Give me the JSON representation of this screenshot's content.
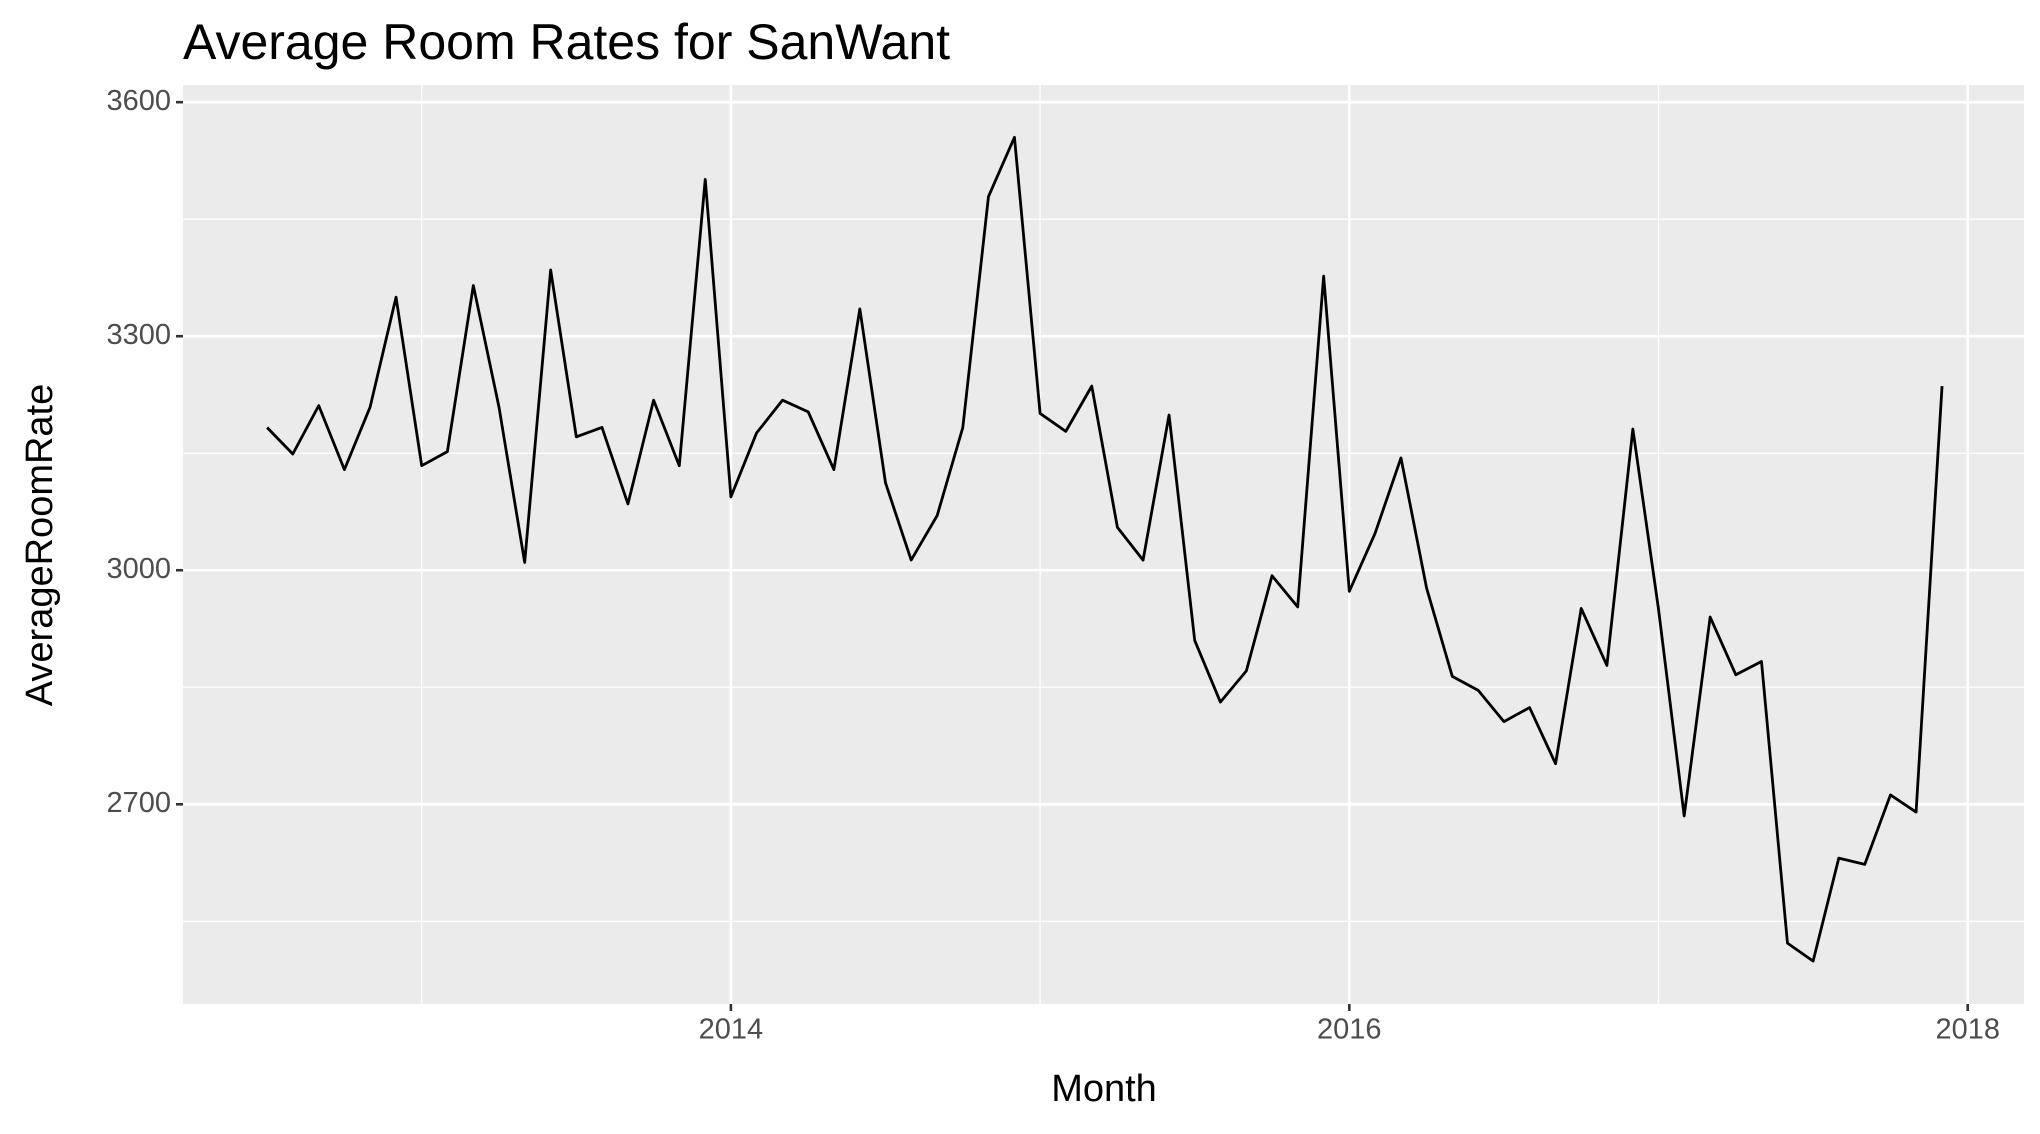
{
  "chart_data": {
    "type": "line",
    "title": "Average Room Rates for SanWant",
    "x_label": "Month",
    "y_label": "AverageRoomRate",
    "x": [
      2012.5,
      2012.583,
      2012.667,
      2012.75,
      2012.833,
      2012.917,
      2013.0,
      2013.083,
      2013.167,
      2013.25,
      2013.333,
      2013.417,
      2013.5,
      2013.583,
      2013.667,
      2013.75,
      2013.833,
      2013.917,
      2014.0,
      2014.083,
      2014.167,
      2014.25,
      2014.333,
      2014.417,
      2014.5,
      2014.583,
      2014.667,
      2014.75,
      2014.833,
      2014.917,
      2015.0,
      2015.083,
      2015.167,
      2015.25,
      2015.333,
      2015.417,
      2015.5,
      2015.583,
      2015.667,
      2015.75,
      2015.833,
      2015.917,
      2016.0,
      2016.083,
      2016.167,
      2016.25,
      2016.333,
      2016.417,
      2016.5,
      2016.583,
      2016.667,
      2016.75,
      2016.833,
      2016.917,
      2017.0,
      2017.083,
      2017.167,
      2017.25,
      2017.333,
      2017.417,
      2017.5,
      2017.583,
      2017.667,
      2017.75,
      2017.833,
      2017.917
    ],
    "series": [
      {
        "name": "AverageRoomRate",
        "color": "#000000",
        "values": [
          3183,
          3149,
          3211,
          3129,
          3209,
          3350,
          3134,
          3152,
          3365,
          3209,
          3010,
          3385,
          3171,
          3183,
          3085,
          3218,
          3134,
          3501,
          3094,
          3176,
          3218,
          3203,
          3129,
          3335,
          3112,
          3013,
          3070,
          3183,
          3479,
          3555,
          3201,
          3178,
          3236,
          3055,
          3013,
          3199,
          2910,
          2831,
          2871,
          2993,
          2953,
          3377,
          2973,
          3047,
          3144,
          2977,
          2864,
          2846,
          2806,
          2824,
          2752,
          2951,
          2878,
          3181,
          2950,
          2685,
          2940,
          2866,
          2883,
          2522,
          2499,
          2631,
          2623,
          2712,
          2690,
          3236
        ]
      }
    ],
    "xlim": [
      2012.228,
      2018.182
    ],
    "xticks": [
      2014,
      2016,
      2018
    ],
    "ylim": [
      2444,
      3622
    ],
    "yticks": [
      2700,
      3000,
      3300,
      3600
    ],
    "grid": true
  }
}
